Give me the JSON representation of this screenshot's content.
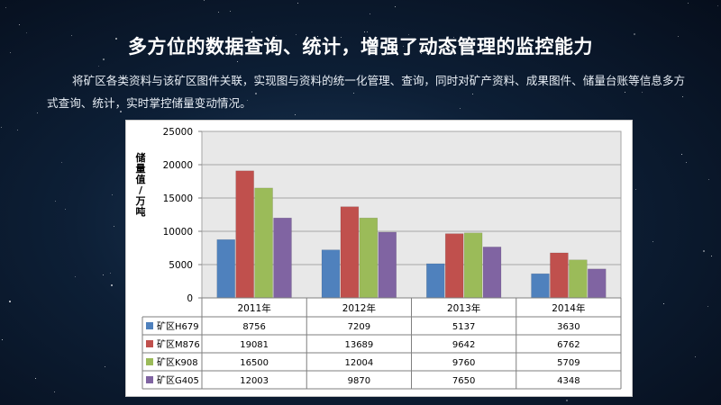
{
  "header": {
    "title": "多方位的数据查询、统计，增强了动态管理的监控能力",
    "description": "将矿区各类资料与该矿区图件关联，实现图与资料的统一化管理、查询，同时对矿产资料、成果图件、储量台账等信息多方式查询、统计，实时掌控储量变动情况。"
  },
  "chart_data": {
    "type": "bar",
    "ylabel": "储量值/万吨",
    "xlabel": "",
    "ylim": [
      0,
      25000
    ],
    "yticks": [
      0,
      5000,
      10000,
      15000,
      20000,
      25000
    ],
    "grid": true,
    "legend": "table-bottom",
    "categories": [
      "2011年",
      "2012年",
      "2013年",
      "2014年"
    ],
    "series": [
      {
        "name": "矿区H679",
        "color": "#4f81bd",
        "values": [
          8756,
          7209,
          5137,
          3630
        ]
      },
      {
        "name": "矿区M876",
        "color": "#c0504d",
        "values": [
          19081,
          13689,
          9642,
          6762
        ]
      },
      {
        "name": "矿区K908",
        "color": "#9bbb59",
        "values": [
          16500,
          12004,
          9760,
          5709
        ]
      },
      {
        "name": "矿区G405",
        "color": "#8064a2",
        "values": [
          12003,
          9870,
          7650,
          4348
        ]
      }
    ]
  }
}
